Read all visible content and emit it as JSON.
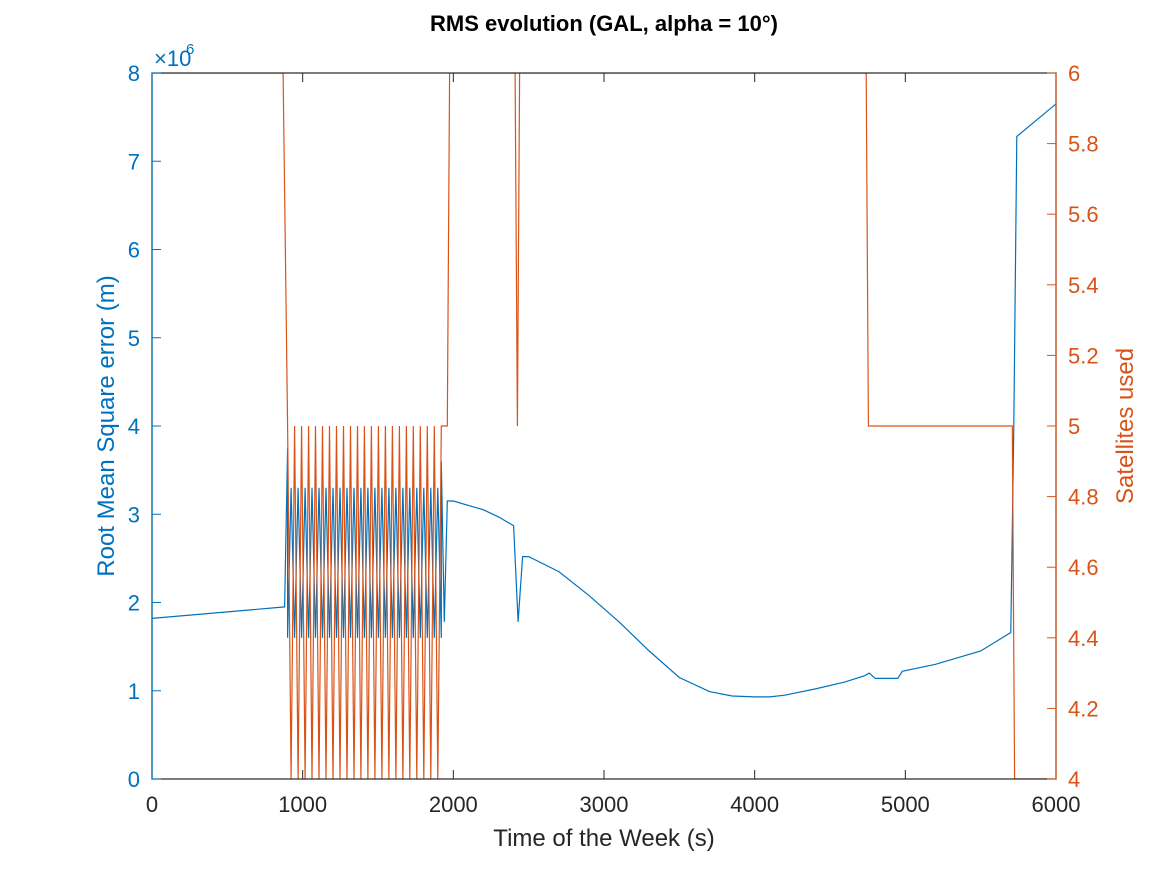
{
  "chart_data": {
    "type": "line",
    "title": "RMS evolution (GAL, alpha = 10°)",
    "xlabel": "Time of the Week (s)",
    "ylabel_left": "Root Mean Square error (m)",
    "ylabel_right": "Satellites used",
    "left_axis_exponent_base": "×10",
    "left_axis_exponent_power": "6",
    "xlim": [
      0,
      6000
    ],
    "ylim_left": [
      0,
      8
    ],
    "ylim_right": [
      4,
      6
    ],
    "x_ticks": [
      0,
      1000,
      2000,
      3000,
      4000,
      5000,
      6000
    ],
    "x_tick_labels": [
      "0",
      "1000",
      "2000",
      "3000",
      "4000",
      "5000",
      "6000"
    ],
    "y_left_ticks": [
      0,
      1,
      2,
      3,
      4,
      5,
      6,
      7,
      8
    ],
    "y_left_tick_labels": [
      "0",
      "1",
      "2",
      "3",
      "4",
      "5",
      "6",
      "7",
      "8"
    ],
    "y_right_ticks": [
      4,
      4.2,
      4.4,
      4.6,
      4.8,
      5,
      5.2,
      5.4,
      5.6,
      5.8,
      6
    ],
    "y_right_tick_labels": [
      "4",
      "4.2",
      "4.4",
      "4.6",
      "4.8",
      "5",
      "5.2",
      "5.4",
      "5.6",
      "5.8",
      "6"
    ],
    "colors": {
      "rms": "#0072BD",
      "sats": "#D95319",
      "axis": "#262626"
    },
    "grid": false,
    "series": [
      {
        "axis": "left",
        "x": [
          0,
          880,
          900,
          920,
          1920,
          1940,
          1960,
          2000,
          2100,
          2200,
          2300,
          2400,
          2430,
          2460,
          2500,
          2700,
          2900,
          3100,
          3300,
          3500,
          3700,
          3850,
          4000,
          4100,
          4200,
          4400,
          4600,
          4730,
          4760,
          4800,
          4900,
          4950,
          4980,
          5200,
          5500,
          5700,
          5720,
          5740,
          6000
        ],
        "y": [
          1.82,
          1.95,
          3.75,
          1.65,
          3.6,
          1.78,
          3.15,
          3.15,
          3.1,
          3.05,
          2.97,
          2.87,
          1.78,
          2.52,
          2.52,
          2.35,
          2.08,
          1.78,
          1.45,
          1.15,
          0.99,
          0.94,
          0.93,
          0.93,
          0.95,
          1.02,
          1.1,
          1.17,
          1.2,
          1.14,
          1.14,
          1.14,
          1.22,
          1.3,
          1.45,
          1.66,
          4.0,
          7.28,
          7.65
        ]
      },
      {
        "axis": "right",
        "x": [
          0,
          870,
          900,
          1930,
          1960,
          1975,
          2410,
          2425,
          2440,
          2455,
          4740,
          4755,
          5710,
          5725,
          6000
        ],
        "y": [
          6,
          6,
          5,
          5,
          5,
          6,
          6,
          5,
          6,
          6,
          6,
          5,
          5,
          4,
          4
        ]
      }
    ],
    "oscillation_region": {
      "x_start": 900,
      "x_end": 1920,
      "cycles": 22,
      "rms_range": [
        1.6,
        3.3
      ],
      "sats_range": [
        4,
        5
      ]
    }
  }
}
